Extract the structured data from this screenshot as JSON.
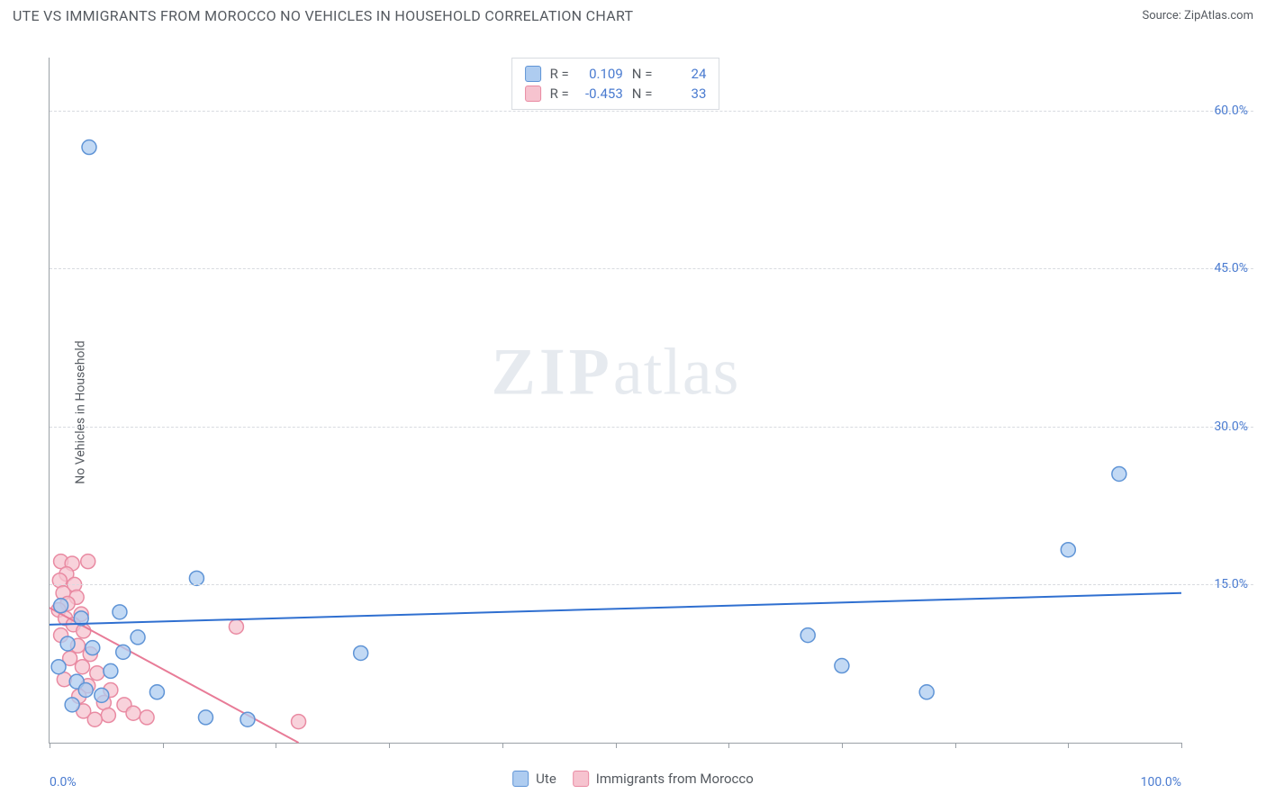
{
  "header": {
    "title": "UTE VS IMMIGRANTS FROM MOROCCO NO VEHICLES IN HOUSEHOLD CORRELATION CHART",
    "source_prefix": "Source: ",
    "source_name": "ZipAtlas.com"
  },
  "y_axis_label": "No Vehicles in Household",
  "watermark": {
    "zip": "ZIP",
    "atlas": "atlas"
  },
  "chart": {
    "type": "scatter",
    "xlim": [
      0,
      100
    ],
    "ylim": [
      0,
      65
    ],
    "x_ticks": [
      0,
      10,
      20,
      30,
      40,
      50,
      60,
      70,
      80,
      90,
      100
    ],
    "x_tick_labels": {
      "0": "0.0%",
      "100": "100.0%"
    },
    "y_gridlines": [
      15,
      30,
      45,
      60
    ],
    "y_tick_labels": {
      "15": "15.0%",
      "30": "30.0%",
      "45": "45.0%",
      "60": "60.0%"
    },
    "grid_color": "#d8dbe0",
    "axis_color": "#9aa0a6",
    "tick_label_color": "#4a7bd0",
    "background_color": "#ffffff",
    "marker_radius": 8,
    "marker_stroke_width": 1.5,
    "line_width": 2,
    "series": [
      {
        "name": "Ute",
        "legend_label": "Ute",
        "color_fill": "#aeccf0",
        "color_stroke": "#5f94d6",
        "line_color": "#2f6fd0",
        "R": "0.109",
        "N": "24",
        "trend": {
          "x1": 0,
          "y1": 11.2,
          "x2": 100,
          "y2": 14.2
        },
        "points": [
          {
            "x": 3.5,
            "y": 56.5
          },
          {
            "x": 13.0,
            "y": 15.6
          },
          {
            "x": 6.2,
            "y": 12.4
          },
          {
            "x": 2.8,
            "y": 11.8
          },
          {
            "x": 7.8,
            "y": 10.0
          },
          {
            "x": 27.5,
            "y": 8.5
          },
          {
            "x": 67.0,
            "y": 10.2
          },
          {
            "x": 70.0,
            "y": 7.3
          },
          {
            "x": 77.5,
            "y": 4.8
          },
          {
            "x": 90.0,
            "y": 18.3
          },
          {
            "x": 94.5,
            "y": 25.5
          },
          {
            "x": 2.4,
            "y": 5.8
          },
          {
            "x": 3.2,
            "y": 5.0
          },
          {
            "x": 4.6,
            "y": 4.5
          },
          {
            "x": 9.5,
            "y": 4.8
          },
          {
            "x": 13.8,
            "y": 2.4
          },
          {
            "x": 17.5,
            "y": 2.2
          },
          {
            "x": 1.6,
            "y": 9.4
          },
          {
            "x": 5.4,
            "y": 6.8
          },
          {
            "x": 6.5,
            "y": 8.6
          },
          {
            "x": 1.0,
            "y": 13.0
          },
          {
            "x": 3.8,
            "y": 9.0
          },
          {
            "x": 0.8,
            "y": 7.2
          },
          {
            "x": 2.0,
            "y": 3.6
          }
        ]
      },
      {
        "name": "Immigrants from Morocco",
        "legend_label": "Immigrants from Morocco",
        "color_fill": "#f6c3cf",
        "color_stroke": "#e98aa2",
        "line_color": "#e87b97",
        "R": "-0.453",
        "N": "33",
        "trend": {
          "x1": 0,
          "y1": 12.8,
          "x2": 22,
          "y2": 0
        },
        "points": [
          {
            "x": 1.0,
            "y": 17.2
          },
          {
            "x": 2.0,
            "y": 17.0
          },
          {
            "x": 3.4,
            "y": 17.2
          },
          {
            "x": 1.5,
            "y": 16.0
          },
          {
            "x": 0.9,
            "y": 15.4
          },
          {
            "x": 2.2,
            "y": 15.0
          },
          {
            "x": 1.2,
            "y": 14.2
          },
          {
            "x": 2.4,
            "y": 13.8
          },
          {
            "x": 1.6,
            "y": 13.2
          },
          {
            "x": 0.8,
            "y": 12.6
          },
          {
            "x": 2.8,
            "y": 12.2
          },
          {
            "x": 1.4,
            "y": 11.8
          },
          {
            "x": 2.1,
            "y": 11.2
          },
          {
            "x": 3.0,
            "y": 10.6
          },
          {
            "x": 1.0,
            "y": 10.2
          },
          {
            "x": 2.5,
            "y": 9.2
          },
          {
            "x": 3.6,
            "y": 8.4
          },
          {
            "x": 1.8,
            "y": 8.0
          },
          {
            "x": 2.9,
            "y": 7.2
          },
          {
            "x": 4.2,
            "y": 6.6
          },
          {
            "x": 1.3,
            "y": 6.0
          },
          {
            "x": 3.4,
            "y": 5.4
          },
          {
            "x": 5.4,
            "y": 5.0
          },
          {
            "x": 2.6,
            "y": 4.4
          },
          {
            "x": 4.8,
            "y": 3.8
          },
          {
            "x": 6.6,
            "y": 3.6
          },
          {
            "x": 3.0,
            "y": 3.0
          },
          {
            "x": 5.2,
            "y": 2.6
          },
          {
            "x": 7.4,
            "y": 2.8
          },
          {
            "x": 4.0,
            "y": 2.2
          },
          {
            "x": 8.6,
            "y": 2.4
          },
          {
            "x": 16.5,
            "y": 11.0
          },
          {
            "x": 22.0,
            "y": 2.0
          }
        ]
      }
    ]
  },
  "legend_top": {
    "R_label": "R =",
    "N_label": "N ="
  }
}
